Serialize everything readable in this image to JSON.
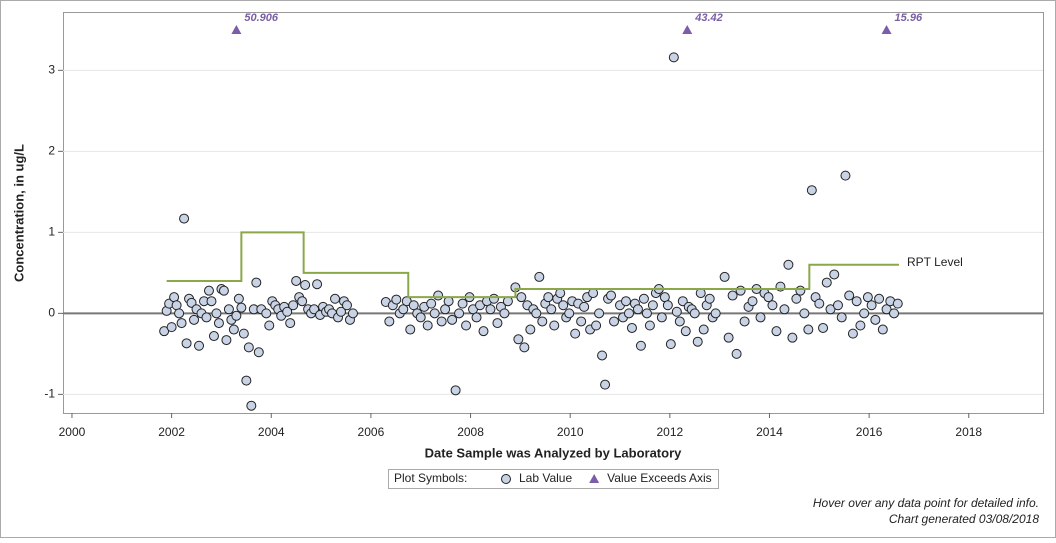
{
  "chart_data": {
    "type": "scatter",
    "xlabel": "Date Sample was Analyzed by Laboratory",
    "ylabel": "Concentration, in ug/L",
    "xlim": [
      1999.82,
      2019.49
    ],
    "ylim": [
      -1.23,
      3.72
    ],
    "xticks": [
      2000,
      2002,
      2004,
      2006,
      2008,
      2010,
      2012,
      2014,
      2016,
      2018
    ],
    "yticks": [
      -1,
      0,
      1,
      2,
      3
    ],
    "grid": true,
    "legend_title": "Plot Symbols:",
    "notes": [
      "Hover over any data point for detailed info.",
      "Chart generated 03/08/2018"
    ],
    "series": [
      {
        "name": "Lab Value",
        "type": "scatter",
        "color": "#c9d3e6",
        "legend": true,
        "x": [
          2001.85,
          2001.9,
          2001.95,
          2002,
          2002.05,
          2002.1,
          2002.15,
          2002.2,
          2002.25,
          2002.3,
          2002.35,
          2002.4,
          2002.45,
          2002.5,
          2002.55,
          2002.6,
          2002.65,
          2002.7,
          2002.75,
          2002.8,
          2002.85,
          2002.9,
          2002.95,
          2003,
          2003.05,
          2003.1,
          2003.15,
          2003.2,
          2003.25,
          2003.3,
          2003.35,
          2003.4,
          2003.45,
          2003.5,
          2003.55,
          2003.6,
          2003.65,
          2003.7,
          2003.75,
          2003.8,
          2003.9,
          2003.96,
          2004.02,
          2004.08,
          2004.14,
          2004.2,
          2004.26,
          2004.32,
          2004.38,
          2004.44,
          2004.5,
          2004.56,
          2004.62,
          2004.68,
          2004.74,
          2004.8,
          2004.86,
          2004.92,
          2004.98,
          2005.04,
          2005.1,
          2005.16,
          2005.22,
          2005.28,
          2005.34,
          2005.4,
          2005.46,
          2005.52,
          2005.58,
          2005.64,
          2006.3,
          2006.37,
          2006.44,
          2006.51,
          2006.58,
          2006.65,
          2006.72,
          2006.79,
          2006.86,
          2006.93,
          2007,
          2007.07,
          2007.14,
          2007.21,
          2007.28,
          2007.35,
          2007.42,
          2007.49,
          2007.56,
          2007.63,
          2007.7,
          2007.77,
          2007.84,
          2007.91,
          2007.98,
          2008.05,
          2008.12,
          2008.19,
          2008.26,
          2008.33,
          2008.4,
          2008.47,
          2008.54,
          2008.61,
          2008.68,
          2008.75,
          2008.9,
          2008.96,
          2009.02,
          2009.08,
          2009.14,
          2009.2,
          2009.26,
          2009.32,
          2009.38,
          2009.44,
          2009.5,
          2009.56,
          2009.62,
          2009.68,
          2009.74,
          2009.8,
          2009.86,
          2009.92,
          2009.98,
          2010.04,
          2010.1,
          2010.16,
          2010.22,
          2010.28,
          2010.34,
          2010.4,
          2010.46,
          2010.52,
          2010.58,
          2010.64,
          2010.7,
          2010.76,
          2010.82,
          2010.88,
          2011,
          2011.06,
          2011.12,
          2011.18,
          2011.24,
          2011.3,
          2011.36,
          2011.42,
          2011.48,
          2011.54,
          2011.6,
          2011.66,
          2011.72,
          2011.78,
          2011.84,
          2011.9,
          2011.96,
          2012.02,
          2012.08,
          2012.14,
          2012.2,
          2012.26,
          2012.32,
          2012.38,
          2012.44,
          2012.5,
          2012.56,
          2012.62,
          2012.68,
          2012.74,
          2012.8,
          2012.86,
          2012.92,
          2013.1,
          2013.18,
          2013.26,
          2013.34,
          2013.42,
          2013.5,
          2013.58,
          2013.66,
          2013.74,
          2013.82,
          2013.9,
          2013.98,
          2014.06,
          2014.14,
          2014.22,
          2014.3,
          2014.38,
          2014.46,
          2014.54,
          2014.62,
          2014.7,
          2014.78,
          2014.85,
          2014.925,
          2015,
          2015.075,
          2015.15,
          2015.225,
          2015.3,
          2015.375,
          2015.45,
          2015.525,
          2015.6,
          2015.675,
          2015.75,
          2015.825,
          2015.9,
          2015.975,
          2016.05,
          2016.125,
          2016.2,
          2016.275,
          2016.35,
          2016.425,
          2016.5,
          2016.575
        ],
        "values": [
          -0.22,
          0.03,
          0.12,
          -0.17,
          0.2,
          0.1,
          0.0,
          -0.12,
          1.17,
          -0.37,
          0.18,
          0.13,
          -0.08,
          0.05,
          -0.4,
          0.0,
          0.15,
          -0.05,
          0.28,
          0.15,
          -0.28,
          0.0,
          -0.12,
          0.3,
          0.28,
          -0.33,
          0.05,
          -0.08,
          -0.2,
          -0.03,
          0.18,
          0.07,
          -0.25,
          -0.83,
          -0.42,
          -1.14,
          0.05,
          0.38,
          -0.48,
          0.05,
          0.0,
          -0.15,
          0.15,
          0.1,
          0.05,
          -0.03,
          0.08,
          0.02,
          -0.12,
          0.1,
          0.4,
          0.2,
          0.15,
          0.35,
          0.05,
          0.0,
          0.05,
          0.36,
          -0.02,
          0.08,
          0.02,
          0.05,
          0.0,
          0.18,
          -0.05,
          0.02,
          0.15,
          0.1,
          -0.08,
          0.0,
          0.14,
          -0.1,
          0.1,
          0.17,
          0.0,
          0.05,
          0.15,
          -0.2,
          0.1,
          0.0,
          -0.05,
          0.08,
          -0.15,
          0.12,
          0.0,
          0.22,
          -0.1,
          0.05,
          0.15,
          -0.08,
          -0.95,
          0.0,
          0.12,
          -0.15,
          0.2,
          0.05,
          -0.05,
          0.1,
          -0.22,
          0.15,
          0.05,
          0.18,
          -0.12,
          0.08,
          0.0,
          0.15,
          0.32,
          -0.32,
          0.2,
          -0.42,
          0.1,
          -0.2,
          0.05,
          0.0,
          0.45,
          -0.1,
          0.12,
          0.2,
          0.05,
          -0.15,
          0.18,
          0.25,
          0.1,
          -0.05,
          0.0,
          0.15,
          -0.25,
          0.12,
          -0.1,
          0.08,
          0.2,
          -0.2,
          0.25,
          -0.15,
          0.0,
          -0.52,
          -0.88,
          0.18,
          0.22,
          -0.1,
          0.1,
          -0.05,
          0.15,
          0.0,
          -0.18,
          0.12,
          0.05,
          -0.4,
          0.18,
          0.0,
          -0.15,
          0.1,
          0.25,
          0.3,
          -0.05,
          0.2,
          0.1,
          -0.38,
          3.16,
          0.02,
          -0.1,
          0.15,
          -0.22,
          0.08,
          0.05,
          0.0,
          -0.35,
          0.25,
          -0.2,
          0.1,
          0.18,
          -0.05,
          0.0,
          0.45,
          -0.3,
          0.22,
          -0.5,
          0.28,
          -0.1,
          0.08,
          0.15,
          0.3,
          -0.05,
          0.25,
          0.2,
          0.1,
          -0.22,
          0.33,
          0.05,
          0.6,
          -0.3,
          0.18,
          0.28,
          0.0,
          -0.2,
          1.52,
          0.2,
          0.12,
          -0.18,
          0.38,
          0.05,
          0.48,
          0.1,
          -0.05,
          1.7,
          0.22,
          -0.25,
          0.15,
          -0.15,
          0.0,
          0.2,
          0.1,
          -0.08,
          0.18,
          -0.2,
          0.05,
          0.15,
          0.0,
          0.12
        ]
      },
      {
        "name": "RPT Level",
        "type": "line",
        "color": "#8aa84a",
        "legend": false,
        "x": [
          2001.9,
          2003.4,
          2003.4,
          2004.65,
          2004.65,
          2006.75,
          2006.75,
          2008.9,
          2008.9,
          2014.8,
          2014.8,
          2016.6
        ],
        "values": [
          0.4,
          0.4,
          1,
          1,
          0.5,
          0.5,
          0.2,
          0.2,
          0.3,
          0.3,
          0.6,
          0.6
        ]
      },
      {
        "name": "Value Exceeds Axis",
        "type": "exceed",
        "color": "#7b5ea7",
        "legend": true,
        "x": [
          2003.3,
          2012.35,
          2016.35
        ],
        "values": [
          50.906,
          43.42,
          15.96
        ]
      }
    ]
  }
}
